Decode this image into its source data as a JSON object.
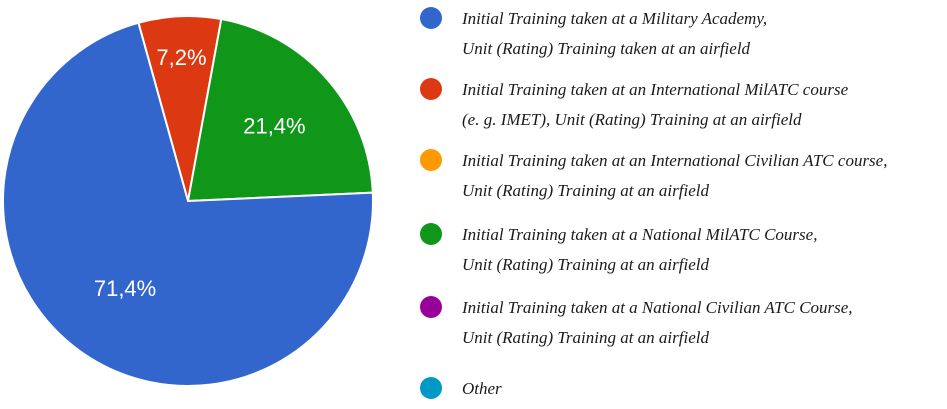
{
  "chart_data": {
    "type": "pie",
    "slices": [
      {
        "label": "Initial Training taken at a Military Academy, Unit (Rating) Training taken at an airfield",
        "value": 71.4,
        "display": "71,4%",
        "color": "#3366cc"
      },
      {
        "label": "Initial Training taken at an International MilATC course (e. g. IMET), Unit (Rating) Training at an airfield",
        "value": 7.2,
        "display": "7,2%",
        "color": "#dc3912"
      },
      {
        "label": "Initial Training taken at an International Civilian ATC course, Unit (Rating) Training at an airfield",
        "value": 0,
        "display": "",
        "color": "#ff9900"
      },
      {
        "label": "Initial Training taken at a National MilATC Course, Unit (Rating) Training at an airfield",
        "value": 21.4,
        "display": "21,4%",
        "color": "#109618"
      },
      {
        "label": "Initial Training taken at a National Civilian ATC Course, Unit (Rating) Training at an airfield",
        "value": 0,
        "display": "",
        "color": "#990099"
      },
      {
        "label": "Other",
        "value": 0,
        "display": "",
        "color": "#0099c6"
      }
    ],
    "legend": {
      "placement": "right",
      "entries": [
        {
          "line1": "Initial Training taken at a Military Academy,",
          "line2": "Unit (Rating) Training taken at an airfield",
          "color": "#3366cc"
        },
        {
          "line1": "Initial Training taken at an International MilATC course",
          "line2": "(e. g. IMET), Unit (Rating) Training at an airfield",
          "color": "#dc3912"
        },
        {
          "line1": "Initial Training taken at an International Civilian ATC course,",
          "line2": "Unit (Rating) Training at an airfield",
          "color": "#ff9900"
        },
        {
          "line1": "Initial Training taken at a National MilATC Course,",
          "line2": "Unit (Rating) Training at an airfield",
          "color": "#109618"
        },
        {
          "line1": "Initial Training taken at a National Civilian ATC Course,",
          "line2": "Unit (Rating) Training at an airfield",
          "color": "#990099"
        },
        {
          "line1": "Other",
          "line2": "",
          "color": "#0099c6"
        }
      ]
    }
  }
}
